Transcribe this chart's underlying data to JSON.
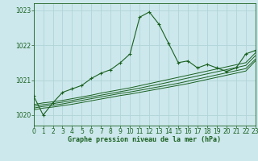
{
  "title": "Graphe pression niveau de la mer (hPa)",
  "bg_color": "#cce8ec",
  "grid_color": "#b0d4d8",
  "line_color": "#1a6020",
  "xlim": [
    0,
    23
  ],
  "ylim": [
    1019.7,
    1023.2
  ],
  "yticks": [
    1020,
    1021,
    1022,
    1023
  ],
  "xticks": [
    0,
    1,
    2,
    3,
    4,
    5,
    6,
    7,
    8,
    9,
    10,
    11,
    12,
    13,
    14,
    15,
    16,
    17,
    18,
    19,
    20,
    21,
    22,
    23
  ],
  "main_line": {
    "x": [
      0,
      1,
      2,
      3,
      4,
      5,
      6,
      7,
      8,
      9,
      10,
      11,
      12,
      13,
      14,
      15,
      16,
      17,
      18,
      19,
      20,
      21,
      22,
      23
    ],
    "y": [
      1020.55,
      1020.0,
      1020.35,
      1020.65,
      1020.75,
      1020.85,
      1021.05,
      1021.2,
      1021.3,
      1021.5,
      1021.75,
      1022.8,
      1022.95,
      1022.6,
      1022.05,
      1021.5,
      1021.55,
      1021.35,
      1021.45,
      1021.35,
      1021.25,
      1021.35,
      1021.75,
      1021.85
    ]
  },
  "band_lines": [
    {
      "x": [
        0,
        1,
        2,
        3,
        4,
        5,
        6,
        7,
        8,
        9,
        10,
        11,
        12,
        13,
        14,
        15,
        16,
        17,
        18,
        19,
        20,
        21,
        22,
        23
      ],
      "y": [
        1020.3,
        1020.35,
        1020.38,
        1020.42,
        1020.47,
        1020.52,
        1020.57,
        1020.63,
        1020.68,
        1020.73,
        1020.78,
        1020.84,
        1020.9,
        1020.96,
        1021.02,
        1021.08,
        1021.14,
        1021.2,
        1021.26,
        1021.32,
        1021.38,
        1021.44,
        1021.5,
        1021.78
      ]
    },
    {
      "x": [
        0,
        1,
        2,
        3,
        4,
        5,
        6,
        7,
        8,
        9,
        10,
        11,
        12,
        13,
        14,
        15,
        16,
        17,
        18,
        19,
        20,
        21,
        22,
        23
      ],
      "y": [
        1020.25,
        1020.3,
        1020.33,
        1020.37,
        1020.42,
        1020.47,
        1020.52,
        1020.57,
        1020.62,
        1020.67,
        1020.72,
        1020.77,
        1020.83,
        1020.88,
        1020.94,
        1021.0,
        1021.06,
        1021.12,
        1021.18,
        1021.24,
        1021.3,
        1021.36,
        1021.42,
        1021.7
      ]
    },
    {
      "x": [
        0,
        1,
        2,
        3,
        4,
        5,
        6,
        7,
        8,
        9,
        10,
        11,
        12,
        13,
        14,
        15,
        16,
        17,
        18,
        19,
        20,
        21,
        22,
        23
      ],
      "y": [
        1020.2,
        1020.25,
        1020.28,
        1020.32,
        1020.37,
        1020.42,
        1020.47,
        1020.52,
        1020.57,
        1020.62,
        1020.66,
        1020.71,
        1020.76,
        1020.81,
        1020.86,
        1020.91,
        1020.97,
        1021.03,
        1021.09,
        1021.15,
        1021.21,
        1021.27,
        1021.33,
        1021.6
      ]
    },
    {
      "x": [
        0,
        1,
        2,
        3,
        4,
        5,
        6,
        7,
        8,
        9,
        10,
        11,
        12,
        13,
        14,
        15,
        16,
        17,
        18,
        19,
        20,
        21,
        22,
        23
      ],
      "y": [
        1020.15,
        1020.2,
        1020.23,
        1020.27,
        1020.31,
        1020.36,
        1020.41,
        1020.46,
        1020.51,
        1020.56,
        1020.6,
        1020.65,
        1020.7,
        1020.75,
        1020.8,
        1020.85,
        1020.9,
        1020.96,
        1021.02,
        1021.08,
        1021.14,
        1021.2,
        1021.26,
        1021.55
      ]
    }
  ]
}
